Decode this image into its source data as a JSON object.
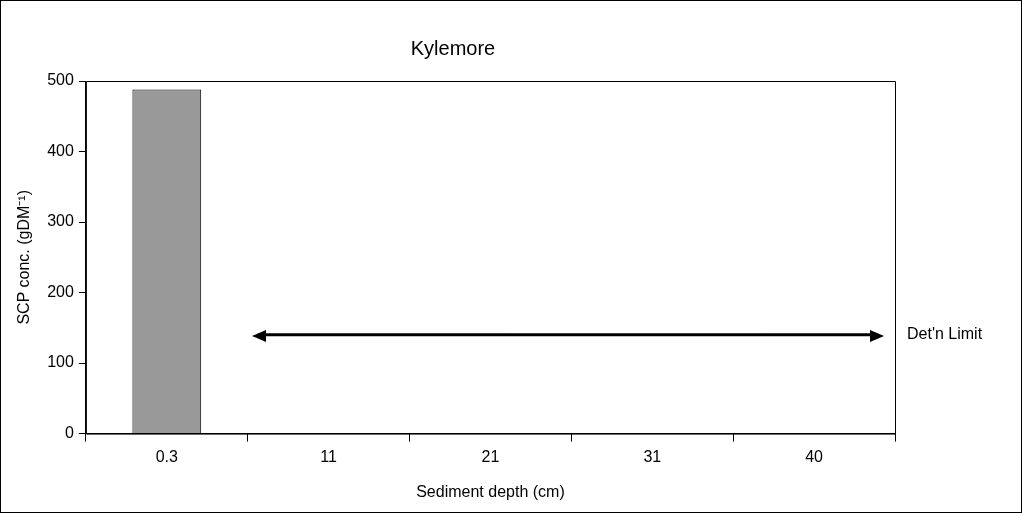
{
  "chart_data": {
    "type": "bar",
    "title": "Kylemore",
    "xlabel": "Sediment depth (cm)",
    "ylabel": "SCP conc. (gDM⁻¹)",
    "categories": [
      "0.3",
      "11",
      "21",
      "31",
      "40"
    ],
    "values": [
      488,
      0,
      0,
      0,
      0
    ],
    "color": "#999999",
    "ylim": [
      0,
      500
    ],
    "yticks": [
      0,
      100,
      200,
      300,
      400,
      500
    ],
    "grid": false,
    "legend": false,
    "ref_lines": [
      {
        "axis": "y",
        "value": 140,
        "label": "Det'n Limit",
        "color": "#000000"
      }
    ]
  }
}
